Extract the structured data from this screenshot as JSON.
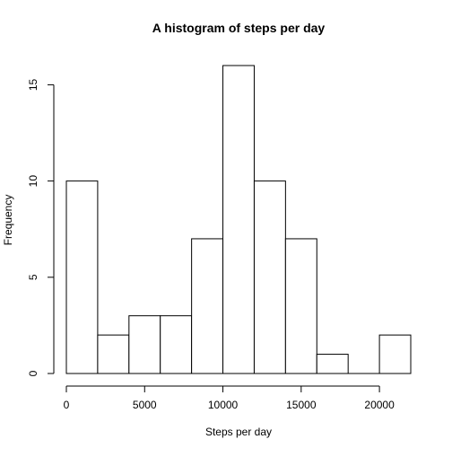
{
  "chart_data": {
    "type": "bar",
    "title": "A histogram of steps per day",
    "xlabel": "Steps per day",
    "ylabel": "Frequency",
    "bin_edges": [
      0,
      2000,
      4000,
      6000,
      8000,
      10000,
      12000,
      14000,
      16000,
      18000,
      20000,
      22000
    ],
    "values": [
      10,
      2,
      3,
      3,
      7,
      16,
      10,
      7,
      1,
      0,
      2
    ],
    "x_ticks": [
      0,
      5000,
      10000,
      15000,
      20000
    ],
    "x_tick_labels": [
      "0",
      "5000",
      "10000",
      "15000",
      "20000"
    ],
    "y_ticks": [
      0,
      5,
      10,
      15
    ],
    "y_tick_labels": [
      "0",
      "5",
      "10",
      "15"
    ],
    "xlim": [
      0,
      22000
    ],
    "ylim": [
      0,
      16
    ],
    "grid": false,
    "bar_fill": "#ffffff",
    "bar_stroke": "#000000"
  }
}
